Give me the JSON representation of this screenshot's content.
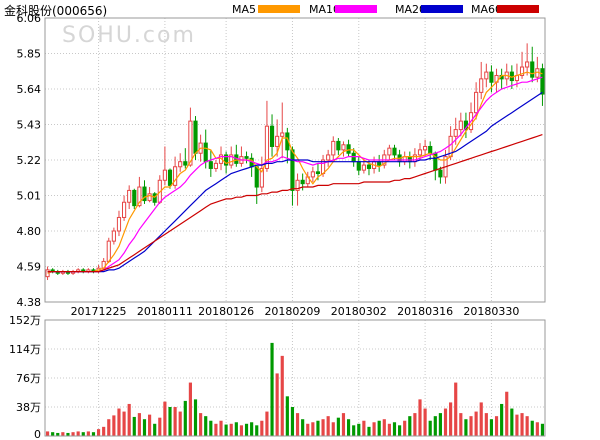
{
  "header": {
    "title": "金科股份(000656)",
    "watermark": "SOHU.com"
  },
  "legend": [
    {
      "label": "MA5",
      "color": "#ff9900"
    },
    {
      "label": "MA10",
      "color": "#ff00ff"
    },
    {
      "label": "MA20",
      "color": "#0000cc"
    },
    {
      "label": "MA60",
      "color": "#cc0000"
    }
  ],
  "colors": {
    "up": "#e64646",
    "down": "#009900",
    "grid": "#c8c8c8",
    "border": "#999999"
  },
  "chart_data": [
    {
      "type": "candlestick",
      "title": "金科股份(000656)",
      "ylim": [
        4.38,
        6.06
      ],
      "yticks": [
        "6.06",
        "5.85",
        "5.64",
        "5.43",
        "5.22",
        "5.01",
        "4.80",
        "4.59",
        "4.38"
      ],
      "xticks": [
        "20171225",
        "20180111",
        "20180126",
        "20180209",
        "20180302",
        "20180316",
        "20180330"
      ],
      "xtick_index": [
        10,
        23,
        35,
        48,
        61,
        74,
        87
      ],
      "grid": true,
      "legend_position": "top",
      "candles": [
        [
          4.53,
          4.57,
          4.59,
          4.51
        ],
        [
          4.57,
          4.56,
          4.58,
          4.55
        ],
        [
          4.56,
          4.55,
          4.57,
          4.54
        ],
        [
          4.55,
          4.56,
          4.57,
          4.54
        ],
        [
          4.56,
          4.55,
          4.57,
          4.54
        ],
        [
          4.55,
          4.56,
          4.57,
          4.54
        ],
        [
          4.56,
          4.57,
          4.58,
          4.55
        ],
        [
          4.57,
          4.56,
          4.58,
          4.55
        ],
        [
          4.56,
          4.57,
          4.58,
          4.55
        ],
        [
          4.57,
          4.56,
          4.58,
          4.55
        ],
        [
          4.56,
          4.58,
          4.6,
          4.55
        ],
        [
          4.58,
          4.62,
          4.64,
          4.57
        ],
        [
          4.62,
          4.74,
          4.76,
          4.61
        ],
        [
          4.74,
          4.8,
          4.82,
          4.72
        ],
        [
          4.8,
          4.88,
          4.92,
          4.77
        ],
        [
          4.88,
          4.97,
          5.01,
          4.86
        ],
        [
          4.97,
          5.04,
          5.07,
          4.93
        ],
        [
          5.04,
          4.95,
          5.05,
          4.93
        ],
        [
          4.95,
          5.06,
          5.12,
          4.94
        ],
        [
          5.06,
          4.98,
          5.1,
          4.96
        ],
        [
          4.98,
          5.02,
          5.06,
          4.97
        ],
        [
          5.02,
          4.97,
          5.03,
          4.95
        ],
        [
          4.97,
          5.1,
          5.13,
          4.96
        ],
        [
          5.1,
          5.16,
          5.3,
          5.07
        ],
        [
          5.16,
          5.07,
          5.17,
          5.05
        ],
        [
          5.07,
          5.18,
          5.24,
          5.05
        ],
        [
          5.18,
          5.21,
          5.26,
          5.15
        ],
        [
          5.21,
          5.19,
          5.29,
          5.17
        ],
        [
          5.19,
          5.45,
          5.53,
          5.18
        ],
        [
          5.45,
          5.26,
          5.48,
          5.22
        ],
        [
          5.26,
          5.32,
          5.37,
          5.21
        ],
        [
          5.32,
          5.21,
          5.4,
          5.17
        ],
        [
          5.21,
          5.17,
          5.28,
          5.12
        ],
        [
          5.17,
          5.2,
          5.22,
          5.15
        ],
        [
          5.2,
          5.25,
          5.3,
          5.16
        ],
        [
          5.25,
          5.19,
          5.27,
          5.14
        ],
        [
          5.19,
          5.25,
          5.3,
          5.17
        ],
        [
          5.25,
          5.2,
          5.31,
          5.18
        ],
        [
          5.2,
          5.24,
          5.3,
          5.18
        ],
        [
          5.24,
          5.23,
          5.27,
          5.2
        ],
        [
          5.23,
          5.18,
          5.26,
          5.12
        ],
        [
          5.18,
          5.06,
          5.19,
          4.96
        ],
        [
          5.06,
          5.17,
          5.24,
          5.03
        ],
        [
          5.17,
          5.42,
          5.57,
          5.15
        ],
        [
          5.42,
          5.3,
          5.49,
          5.24
        ],
        [
          5.3,
          5.36,
          5.46,
          5.24
        ],
        [
          5.36,
          5.38,
          5.56,
          5.23
        ],
        [
          5.38,
          5.28,
          5.41,
          5.2
        ],
        [
          5.28,
          5.04,
          5.3,
          4.95
        ],
        [
          5.04,
          5.1,
          5.14,
          4.95
        ],
        [
          5.1,
          5.08,
          5.14,
          5.04
        ],
        [
          5.08,
          5.12,
          5.15,
          5.06
        ],
        [
          5.12,
          5.15,
          5.18,
          5.09
        ],
        [
          5.15,
          5.14,
          5.2,
          5.1
        ],
        [
          5.14,
          5.22,
          5.25,
          5.12
        ],
        [
          5.22,
          5.25,
          5.28,
          5.18
        ],
        [
          5.25,
          5.33,
          5.36,
          5.22
        ],
        [
          5.33,
          5.28,
          5.35,
          5.25
        ],
        [
          5.28,
          5.31,
          5.33,
          5.24
        ],
        [
          5.31,
          5.26,
          5.34,
          5.24
        ],
        [
          5.26,
          5.21,
          5.29,
          5.18
        ],
        [
          5.21,
          5.16,
          5.24,
          5.13
        ],
        [
          5.16,
          5.19,
          5.23,
          5.14
        ],
        [
          5.19,
          5.17,
          5.22,
          5.13
        ],
        [
          5.17,
          5.21,
          5.24,
          5.14
        ],
        [
          5.21,
          5.19,
          5.25,
          5.15
        ],
        [
          5.19,
          5.25,
          5.28,
          5.17
        ],
        [
          5.25,
          5.29,
          5.31,
          5.22
        ],
        [
          5.29,
          5.25,
          5.31,
          5.22
        ],
        [
          5.25,
          5.21,
          5.28,
          5.18
        ],
        [
          5.21,
          5.24,
          5.27,
          5.19
        ],
        [
          5.24,
          5.21,
          5.27,
          5.17
        ],
        [
          5.21,
          5.25,
          5.29,
          5.18
        ],
        [
          5.25,
          5.28,
          5.32,
          5.22
        ],
        [
          5.28,
          5.3,
          5.34,
          5.24
        ],
        [
          5.3,
          5.26,
          5.33,
          5.22
        ],
        [
          5.26,
          5.16,
          5.27,
          5.1
        ],
        [
          5.16,
          5.12,
          5.18,
          5.08
        ],
        [
          5.12,
          5.24,
          5.28,
          5.08
        ],
        [
          5.24,
          5.36,
          5.42,
          5.22
        ],
        [
          5.36,
          5.4,
          5.47,
          5.31
        ],
        [
          5.4,
          5.45,
          5.5,
          5.36
        ],
        [
          5.45,
          5.4,
          5.5,
          5.35
        ],
        [
          5.4,
          5.5,
          5.56,
          5.38
        ],
        [
          5.5,
          5.62,
          5.68,
          5.46
        ],
        [
          5.62,
          5.7,
          5.8,
          5.58
        ],
        [
          5.7,
          5.74,
          5.79,
          5.65
        ],
        [
          5.74,
          5.68,
          5.78,
          5.62
        ],
        [
          5.68,
          5.72,
          5.76,
          5.62
        ],
        [
          5.72,
          5.7,
          5.76,
          5.64
        ],
        [
          5.7,
          5.74,
          5.79,
          5.66
        ],
        [
          5.74,
          5.69,
          5.78,
          5.64
        ],
        [
          5.69,
          5.72,
          5.79,
          5.65
        ],
        [
          5.72,
          5.77,
          5.86,
          5.7
        ],
        [
          5.77,
          5.8,
          5.91,
          5.72
        ],
        [
          5.8,
          5.71,
          5.89,
          5.68
        ],
        [
          5.71,
          5.76,
          5.83,
          5.68
        ],
        [
          5.76,
          5.61,
          5.79,
          5.54
        ]
      ],
      "ma": [
        {
          "name": "MA5",
          "color": "#ff9900",
          "values": [
            4.55,
            4.56,
            4.56,
            4.56,
            4.56,
            4.56,
            4.56,
            4.56,
            4.56,
            4.56,
            4.57,
            4.58,
            4.62,
            4.66,
            4.71,
            4.79,
            4.87,
            4.92,
            4.97,
            5.0,
            5.01,
            5.0,
            5.03,
            5.06,
            5.06,
            5.1,
            5.14,
            5.16,
            5.21,
            5.26,
            5.29,
            5.29,
            5.28,
            5.23,
            5.23,
            5.2,
            5.21,
            5.22,
            5.22,
            5.22,
            5.22,
            5.18,
            5.15,
            5.22,
            5.23,
            5.26,
            5.35,
            5.35,
            5.27,
            5.23,
            5.17,
            5.12,
            5.08,
            5.12,
            5.14,
            5.17,
            5.21,
            5.24,
            5.27,
            5.28,
            5.28,
            5.25,
            5.22,
            5.2,
            5.19,
            5.18,
            5.2,
            5.22,
            5.23,
            5.23,
            5.24,
            5.24,
            5.24,
            5.24,
            5.25,
            5.26,
            5.24,
            5.22,
            5.22,
            5.24,
            5.29,
            5.34,
            5.39,
            5.43,
            5.47,
            5.55,
            5.62,
            5.65,
            5.68,
            5.72,
            5.72,
            5.71,
            5.72,
            5.73,
            5.74,
            5.73,
            5.74,
            5.73
          ]
        },
        {
          "name": "MA10",
          "color": "#ff00ff",
          "values": [
            4.56,
            4.56,
            4.56,
            4.56,
            4.56,
            4.56,
            4.56,
            4.56,
            4.56,
            4.56,
            4.56,
            4.57,
            4.59,
            4.61,
            4.63,
            4.67,
            4.72,
            4.76,
            4.81,
            4.85,
            4.89,
            4.93,
            4.97,
            5.0,
            5.02,
            5.04,
            5.06,
            5.09,
            5.13,
            5.16,
            5.19,
            5.21,
            5.22,
            5.23,
            5.24,
            5.24,
            5.24,
            5.23,
            5.22,
            5.22,
            5.21,
            5.2,
            5.19,
            5.21,
            5.21,
            5.22,
            5.24,
            5.23,
            5.22,
            5.21,
            5.21,
            5.2,
            5.19,
            5.2,
            5.2,
            5.21,
            5.22,
            5.23,
            5.23,
            5.24,
            5.24,
            5.24,
            5.23,
            5.22,
            5.22,
            5.22,
            5.22,
            5.22,
            5.22,
            5.22,
            5.22,
            5.22,
            5.22,
            5.23,
            5.24,
            5.25,
            5.26,
            5.27,
            5.29,
            5.31,
            5.34,
            5.37,
            5.41,
            5.45,
            5.49,
            5.53,
            5.57,
            5.6,
            5.62,
            5.64,
            5.65,
            5.66,
            5.67,
            5.68,
            5.68,
            5.69,
            5.7,
            5.71
          ]
        },
        {
          "name": "MA20",
          "color": "#0000cc",
          "values": [
            4.56,
            4.56,
            4.56,
            4.56,
            4.56,
            4.56,
            4.56,
            4.56,
            4.56,
            4.56,
            4.56,
            4.56,
            4.57,
            4.57,
            4.58,
            4.6,
            4.62,
            4.64,
            4.66,
            4.68,
            4.71,
            4.74,
            4.77,
            4.8,
            4.83,
            4.86,
            4.89,
            4.92,
            4.95,
            4.98,
            5.01,
            5.04,
            5.06,
            5.08,
            5.1,
            5.12,
            5.14,
            5.15,
            5.16,
            5.17,
            5.18,
            5.19,
            5.19,
            5.2,
            5.2,
            5.21,
            5.21,
            5.22,
            5.22,
            5.22,
            5.22,
            5.22,
            5.21,
            5.21,
            5.21,
            5.21,
            5.21,
            5.21,
            5.21,
            5.21,
            5.21,
            5.21,
            5.21,
            5.21,
            5.21,
            5.21,
            5.21,
            5.21,
            5.21,
            5.21,
            5.21,
            5.21,
            5.21,
            5.22,
            5.22,
            5.23,
            5.23,
            5.24,
            5.25,
            5.26,
            5.27,
            5.29,
            5.31,
            5.33,
            5.35,
            5.37,
            5.39,
            5.42,
            5.44,
            5.46,
            5.48,
            5.5,
            5.52,
            5.54,
            5.56,
            5.58,
            5.6,
            5.62
          ]
        },
        {
          "name": "MA60",
          "color": "#cc0000",
          "values": [
            4.56,
            4.56,
            4.56,
            4.56,
            4.56,
            4.56,
            4.56,
            4.56,
            4.56,
            4.56,
            4.56,
            4.57,
            4.58,
            4.59,
            4.6,
            4.62,
            4.64,
            4.66,
            4.68,
            4.7,
            4.72,
            4.74,
            4.76,
            4.78,
            4.8,
            4.82,
            4.84,
            4.86,
            4.88,
            4.9,
            4.92,
            4.94,
            4.96,
            4.97,
            4.98,
            4.99,
            4.99,
            5.0,
            5.0,
            5.01,
            5.01,
            5.01,
            5.02,
            5.02,
            5.03,
            5.03,
            5.04,
            5.04,
            5.05,
            5.05,
            5.06,
            5.06,
            5.06,
            5.07,
            5.07,
            5.07,
            5.08,
            5.08,
            5.08,
            5.08,
            5.08,
            5.08,
            5.09,
            5.09,
            5.09,
            5.09,
            5.09,
            5.09,
            5.1,
            5.1,
            5.11,
            5.11,
            5.12,
            5.13,
            5.14,
            5.15,
            5.16,
            5.17,
            5.18,
            5.19,
            5.2,
            5.21,
            5.22,
            5.23,
            5.24,
            5.25,
            5.26,
            5.27,
            5.28,
            5.29,
            5.3,
            5.31,
            5.32,
            5.33,
            5.34,
            5.35,
            5.36,
            5.37
          ]
        }
      ]
    },
    {
      "type": "bar",
      "title": "",
      "ylabel_unit": "万",
      "ylim": [
        0,
        152
      ],
      "yticks": [
        "152万",
        "114万",
        "76万",
        "38万",
        "0"
      ],
      "grid": true,
      "values": [
        6,
        5,
        4,
        5,
        4,
        5,
        6,
        5,
        6,
        5,
        9,
        12,
        22,
        27,
        36,
        32,
        42,
        25,
        30,
        22,
        28,
        16,
        24,
        45,
        38,
        38,
        32,
        46,
        70,
        48,
        30,
        26,
        20,
        16,
        20,
        15,
        16,
        18,
        14,
        16,
        18,
        14,
        20,
        32,
        122,
        82,
        105,
        52,
        38,
        30,
        22,
        16,
        18,
        20,
        22,
        26,
        18,
        24,
        30,
        22,
        14,
        16,
        20,
        12,
        18,
        20,
        22,
        16,
        18,
        14,
        20,
        26,
        30,
        48,
        36,
        20,
        26,
        30,
        36,
        44,
        70,
        30,
        22,
        26,
        32,
        44,
        30,
        22,
        26,
        42,
        58,
        36,
        28,
        30,
        26,
        20,
        18,
        16
      ]
    }
  ]
}
